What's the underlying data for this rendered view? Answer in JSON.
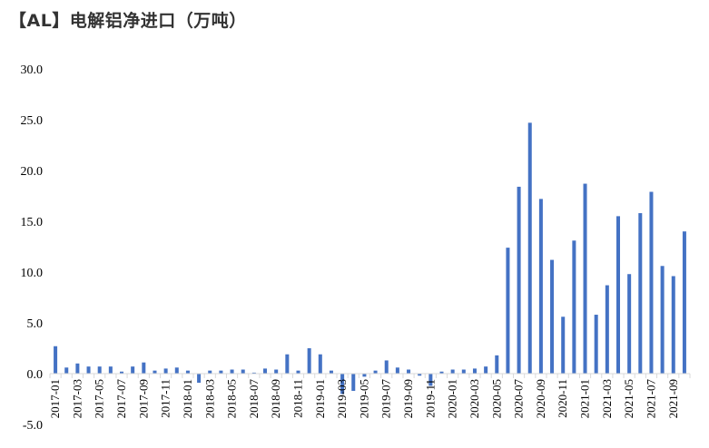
{
  "chart_data": {
    "type": "bar",
    "title": "【AL】电解铝净进口（万吨）",
    "xlabel": "",
    "ylabel": "",
    "ylim": [
      -5,
      30
    ],
    "yticks": [
      "-5.0",
      "0.0",
      "5.0",
      "10.0",
      "15.0",
      "20.0",
      "25.0",
      "30.0"
    ],
    "bar_color": "#4472C4",
    "grid": false,
    "categories": [
      "2017-01",
      "2017-02",
      "2017-03",
      "2017-04",
      "2017-05",
      "2017-06",
      "2017-07",
      "2017-08",
      "2017-09",
      "2017-10",
      "2017-11",
      "2017-12",
      "2018-01",
      "2018-02",
      "2018-03",
      "2018-04",
      "2018-05",
      "2018-06",
      "2018-07",
      "2018-08",
      "2018-09",
      "2018-10",
      "2018-11",
      "2018-12",
      "2019-01",
      "2019-02",
      "2019-03",
      "2019-04",
      "2019-05",
      "2019-06",
      "2019-07",
      "2019-08",
      "2019-09",
      "2019-10",
      "2019-11",
      "2019-12",
      "2020-01",
      "2020-02",
      "2020-03",
      "2020-04",
      "2020-05",
      "2020-06",
      "2020-07",
      "2020-08",
      "2020-09",
      "2020-10",
      "2020-11",
      "2020-12",
      "2021-01",
      "2021-02",
      "2021-03",
      "2021-04",
      "2021-05",
      "2021-06",
      "2021-07",
      "2021-08",
      "2021-09",
      "2021-10"
    ],
    "values": [
      2.7,
      0.6,
      1.0,
      0.7,
      0.7,
      0.7,
      0.2,
      0.7,
      1.1,
      0.3,
      0.5,
      0.6,
      0.3,
      -0.9,
      0.3,
      0.3,
      0.4,
      0.4,
      0.1,
      0.5,
      0.4,
      1.9,
      0.3,
      2.5,
      1.9,
      0.3,
      -2.0,
      -1.7,
      -0.3,
      0.3,
      1.3,
      0.6,
      0.4,
      -0.2,
      -1.2,
      0.2,
      0.4,
      0.4,
      0.5,
      0.7,
      1.8,
      12.4,
      18.4,
      24.7,
      17.2,
      11.2,
      5.6,
      13.1,
      18.7,
      5.8,
      8.7,
      15.5,
      9.8,
      15.8,
      17.9,
      10.6,
      9.6,
      14.0
    ],
    "xtick_labels": [
      "2017-01",
      "2017-03",
      "2017-05",
      "2017-07",
      "2017-09",
      "2017-11",
      "2018-01",
      "2018-03",
      "2018-05",
      "2018-07",
      "2018-09",
      "2018-11",
      "2019-01",
      "2019-03",
      "2019-05",
      "2019-07",
      "2019-09",
      "2019-11",
      "2020-01",
      "2020-03",
      "2020-05",
      "2020-07",
      "2020-09",
      "2020-11",
      "2021-01",
      "2021-03",
      "2021-05",
      "2021-07",
      "2021-09"
    ]
  }
}
